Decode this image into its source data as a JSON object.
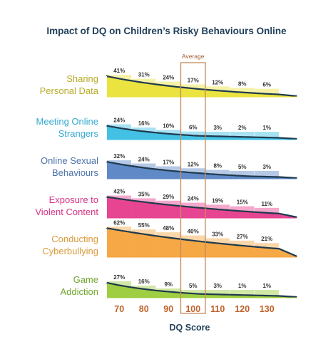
{
  "chart_data": {
    "type": "bar",
    "title": "Impact of DQ on Children’s Risky Behaviours Online",
    "xlabel": "DQ Score",
    "categories": [
      "70",
      "80",
      "90",
      "100",
      "110",
      "120",
      "130"
    ],
    "annotation": {
      "label": "Average",
      "category": "100"
    },
    "unit_suffix": "%",
    "ylim": [
      0,
      70
    ],
    "series": [
      {
        "name": "Sharing\nPersonal Data",
        "color": "#e9e23a",
        "label_color": "#b8aa28",
        "values": [
          41,
          31,
          24,
          17,
          12,
          8,
          6
        ]
      },
      {
        "name": "Meeting Online\nStrangers",
        "color": "#3dbfe3",
        "label_color": "#34a9d0",
        "values": [
          24,
          16,
          10,
          6,
          3,
          2,
          1
        ]
      },
      {
        "name": "Online Sexual\nBehaviours",
        "color": "#5b86c5",
        "label_color": "#4a72a8",
        "values": [
          32,
          24,
          17,
          12,
          8,
          5,
          3
        ]
      },
      {
        "name": "Exposure to\nViolent Content",
        "color": "#e63f8e",
        "label_color": "#d63384",
        "values": [
          42,
          35,
          29,
          24,
          19,
          15,
          11
        ]
      },
      {
        "name": "Conducting\nCyberbullying",
        "color": "#f5a540",
        "label_color": "#d99a3a",
        "values": [
          62,
          55,
          48,
          40,
          33,
          27,
          21
        ]
      },
      {
        "name": "Game\nAddiction",
        "color": "#9ccc3c",
        "label_color": "#6fa52c",
        "values": [
          27,
          16,
          9,
          5,
          3,
          1,
          1
        ]
      }
    ]
  }
}
